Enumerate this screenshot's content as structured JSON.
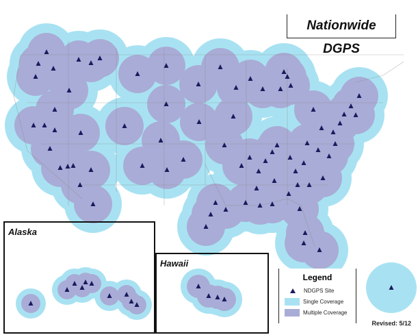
{
  "title": "Nationwide DGPS",
  "insets": {
    "alaska": "Alaska",
    "hawaii": "Hawaii"
  },
  "legend": {
    "title": "Legend",
    "items": [
      {
        "label": "NDGPS Site",
        "symbol": "triangle",
        "color": "#1a1a5e"
      },
      {
        "label": "Single Coverage",
        "color": "#a8e2f2"
      },
      {
        "label": "Multiple Coverage",
        "color": "#a9acd6"
      }
    ]
  },
  "revised": "Revised: 5/12",
  "colors": {
    "single": "#a8e2f2",
    "multiple": "#a9acd6",
    "site": "#1a1a5e",
    "border": "#8a8a8a"
  }
}
